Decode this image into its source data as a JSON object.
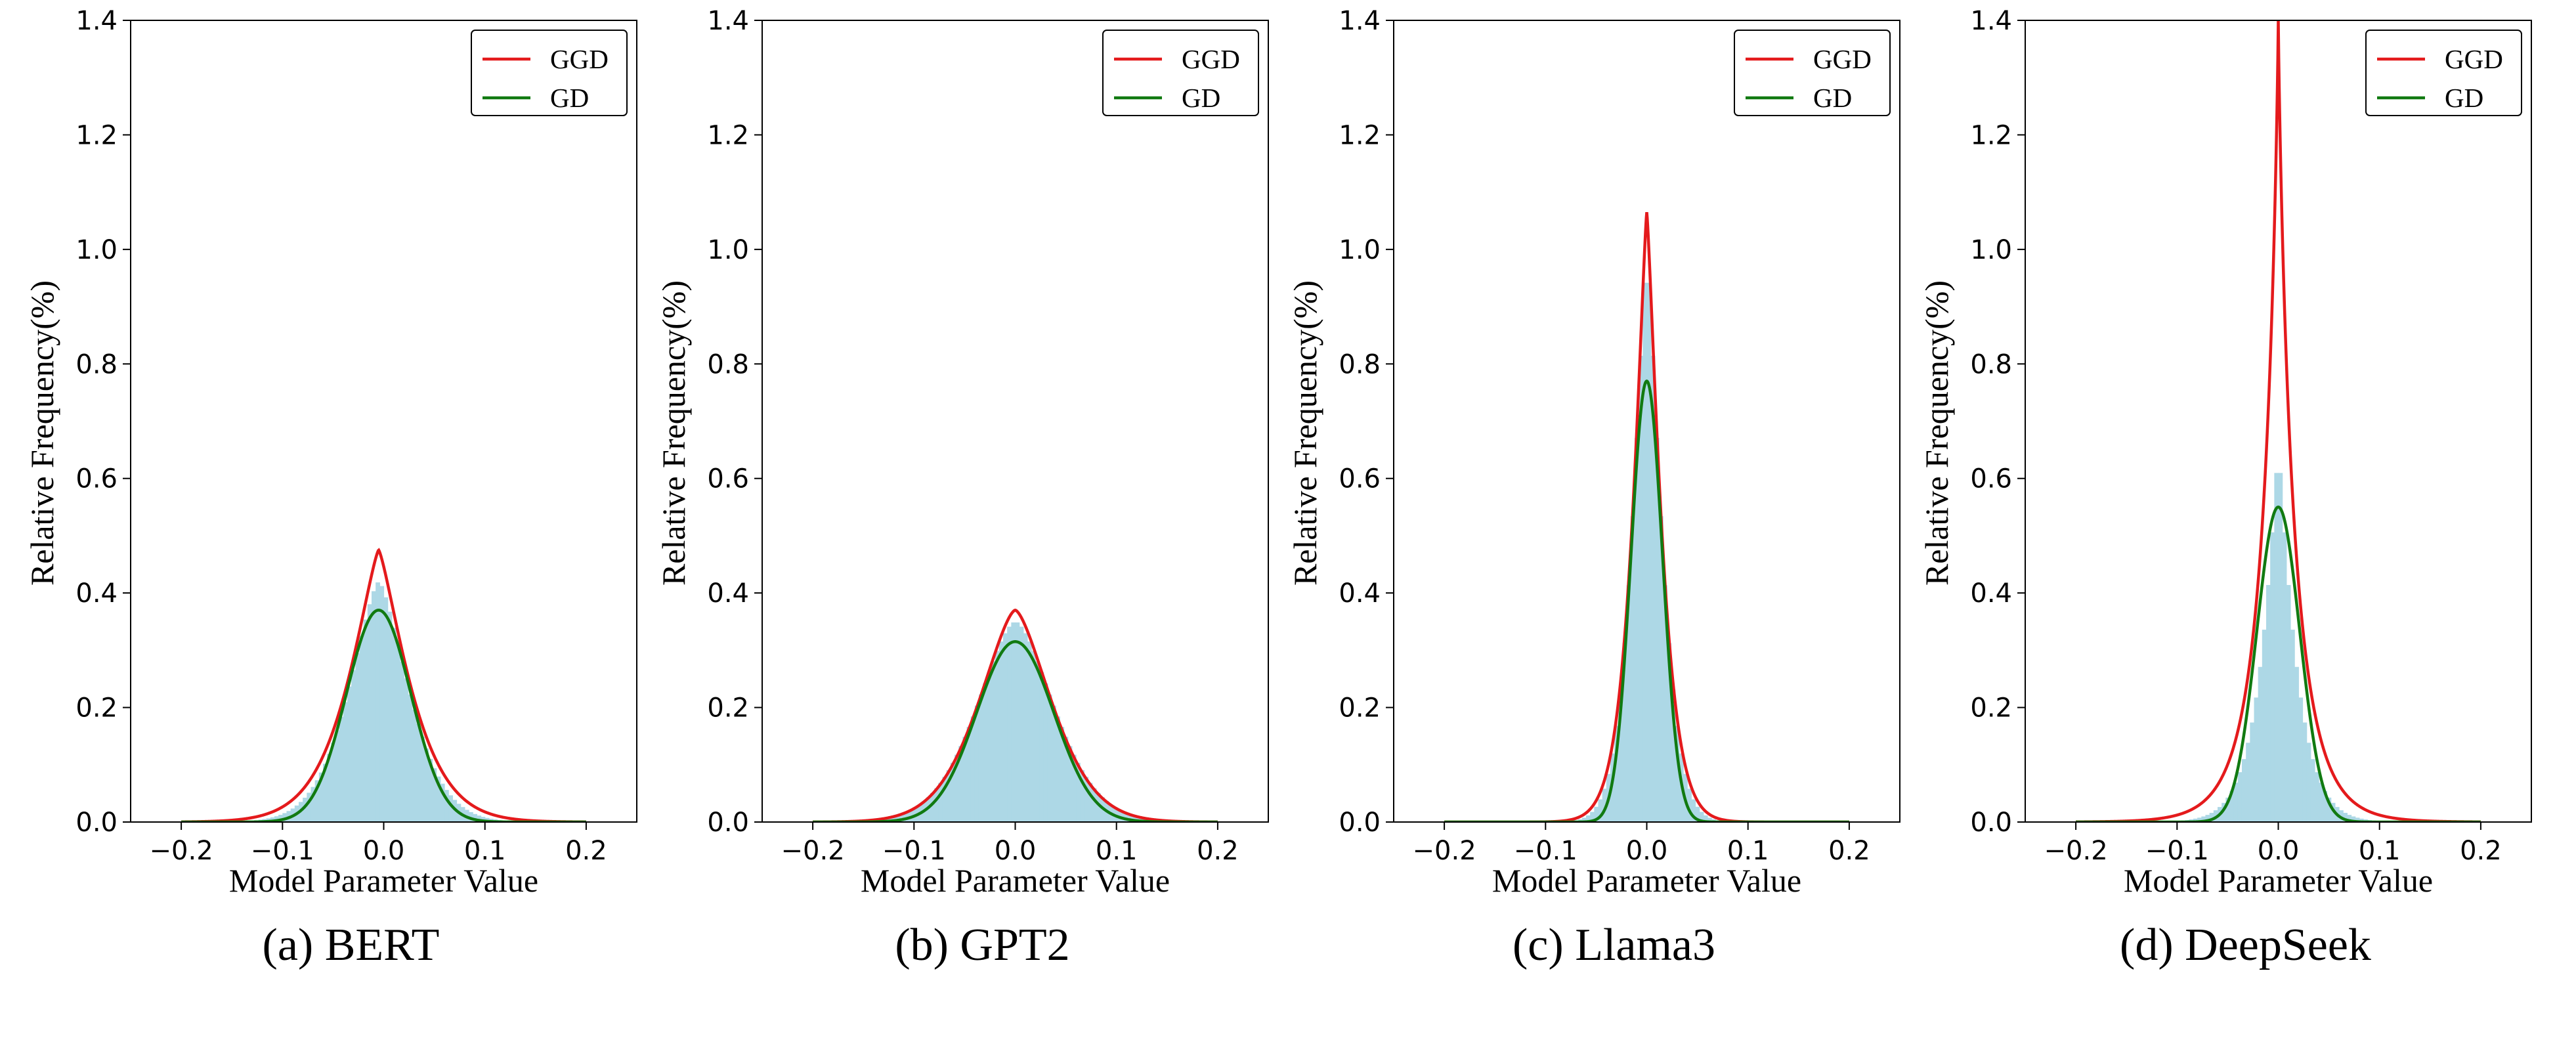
{
  "chart_data": [
    {
      "type": "area",
      "caption": "(a) BERT",
      "xlabel": "Model Parameter Value",
      "ylabel": "Relative Frequency(%)",
      "xlim": [
        -0.25,
        0.25
      ],
      "ylim": [
        0,
        1.4
      ],
      "xticks": [
        -0.2,
        -0.1,
        0.0,
        0.1,
        0.2
      ],
      "xtick_labels": [
        "−0.2",
        "−0.1",
        "0.0",
        "0.1",
        "0.2"
      ],
      "yticks": [
        0.0,
        0.2,
        0.4,
        0.6,
        0.8,
        1.0,
        1.2,
        1.4
      ],
      "ytick_labels": [
        "0.0",
        "0.2",
        "0.4",
        "0.6",
        "0.8",
        "1.0",
        "1.2",
        "1.4"
      ],
      "legend": {
        "position": "top-right",
        "entries": [
          "GGD",
          "GD"
        ]
      },
      "series": [
        {
          "name": "Histogram",
          "kind": "histogram",
          "color": "#add8e6",
          "peak": 0.42,
          "center": -0.005,
          "scale": 0.042,
          "shape": 1.5
        },
        {
          "name": "GGD",
          "kind": "line",
          "color": "#e41a1c",
          "peak": 0.475,
          "center": -0.005,
          "scale": 0.042,
          "shape": 1.3
        },
        {
          "name": "GD",
          "kind": "line",
          "color": "#117a11",
          "peak": 0.37,
          "center": -0.005,
          "scale": 0.045,
          "shape": 2.0
        }
      ]
    },
    {
      "type": "area",
      "caption": "(b) GPT2",
      "xlabel": "Model Parameter Value",
      "ylabel": "Relative Frequency(%)",
      "xlim": [
        -0.25,
        0.25
      ],
      "ylim": [
        0,
        1.4
      ],
      "xticks": [
        -0.2,
        -0.1,
        0.0,
        0.1,
        0.2
      ],
      "xtick_labels": [
        "−0.2",
        "−0.1",
        "0.0",
        "0.1",
        "0.2"
      ],
      "yticks": [
        0.0,
        0.2,
        0.4,
        0.6,
        0.8,
        1.0,
        1.2,
        1.4
      ],
      "ytick_labels": [
        "0.0",
        "0.2",
        "0.4",
        "0.6",
        "0.8",
        "1.0",
        "1.2",
        "1.4"
      ],
      "legend": {
        "position": "top-right",
        "entries": [
          "GGD",
          "GD"
        ]
      },
      "series": [
        {
          "name": "Histogram",
          "kind": "histogram",
          "color": "#add8e6",
          "peak": 0.35,
          "center": 0.0,
          "scale": 0.055,
          "shape": 1.65
        },
        {
          "name": "GGD",
          "kind": "line",
          "color": "#e41a1c",
          "peak": 0.37,
          "center": 0.0,
          "scale": 0.052,
          "shape": 1.55
        },
        {
          "name": "GD",
          "kind": "line",
          "color": "#117a11",
          "peak": 0.315,
          "center": 0.0,
          "scale": 0.054,
          "shape": 2.0
        }
      ]
    },
    {
      "type": "area",
      "caption": "(c) Llama3",
      "xlabel": "Model Parameter Value",
      "ylabel": "Relative Frequency(%)",
      "xlim": [
        -0.25,
        0.25
      ],
      "ylim": [
        0,
        1.4
      ],
      "xticks": [
        -0.2,
        -0.1,
        0.0,
        0.1,
        0.2
      ],
      "xtick_labels": [
        "−0.2",
        "−0.1",
        "0.0",
        "0.1",
        "0.2"
      ],
      "yticks": [
        0.0,
        0.2,
        0.4,
        0.6,
        0.8,
        1.0,
        1.2,
        1.4
      ],
      "ytick_labels": [
        "0.0",
        "0.2",
        "0.4",
        "0.6",
        "0.8",
        "1.0",
        "1.2",
        "1.4"
      ],
      "legend": {
        "position": "top-right",
        "entries": [
          "GGD",
          "GD"
        ]
      },
      "series": [
        {
          "name": "Histogram",
          "kind": "histogram",
          "color": "#add8e6",
          "peak": 0.98,
          "center": 0.0,
          "scale": 0.02,
          "shape": 1.4
        },
        {
          "name": "GGD",
          "kind": "line",
          "color": "#e41a1c",
          "peak": 1.065,
          "center": 0.0,
          "scale": 0.019,
          "shape": 1.25
        },
        {
          "name": "GD",
          "kind": "line",
          "color": "#117a11",
          "peak": 0.77,
          "center": 0.0,
          "scale": 0.022,
          "shape": 2.0
        }
      ]
    },
    {
      "type": "area",
      "caption": "(d) DeepSeek",
      "xlabel": "Model Parameter Value",
      "ylabel": "Relative Frequency(%)",
      "xlim": [
        -0.25,
        0.25
      ],
      "ylim": [
        0,
        1.4
      ],
      "xticks": [
        -0.2,
        -0.1,
        0.0,
        0.1,
        0.2
      ],
      "xtick_labels": [
        "−0.2",
        "−0.1",
        "0.0",
        "0.1",
        "0.2"
      ],
      "yticks": [
        0.0,
        0.2,
        0.4,
        0.6,
        0.8,
        1.0,
        1.2,
        1.4
      ],
      "ytick_labels": [
        "0.0",
        "0.2",
        "0.4",
        "0.6",
        "0.8",
        "1.0",
        "1.2",
        "1.4"
      ],
      "legend": {
        "position": "top-right",
        "entries": [
          "GGD",
          "GD"
        ]
      },
      "series": [
        {
          "name": "Histogram",
          "kind": "histogram",
          "color": "#add8e6",
          "peak": 0.66,
          "center": 0.0,
          "scale": 0.02,
          "shape": 1.1
        },
        {
          "name": "GGD",
          "kind": "line",
          "color": "#e41a1c",
          "peak": 1.4,
          "center": 0.0,
          "scale": 0.016,
          "shape": 0.85
        },
        {
          "name": "GD",
          "kind": "line",
          "color": "#117a11",
          "peak": 0.55,
          "center": 0.0,
          "scale": 0.03,
          "shape": 2.0
        }
      ]
    }
  ]
}
